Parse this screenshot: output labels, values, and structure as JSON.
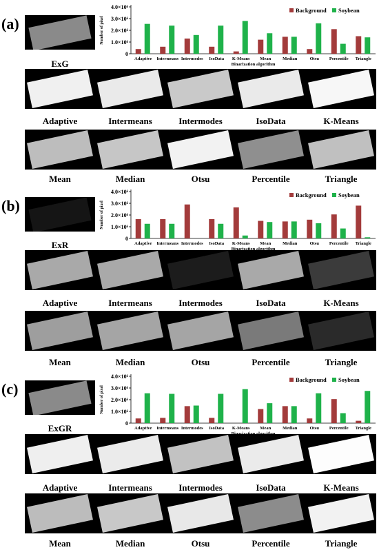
{
  "panels": [
    {
      "label": "(a)",
      "index_name": "ExG",
      "row1": [
        "Adaptive",
        "Intermeans",
        "Intermodes",
        "IsoData",
        "K-Means"
      ],
      "row2": [
        "Mean",
        "Median",
        "Otsu",
        "Percentile",
        "Triangle"
      ]
    },
    {
      "label": "(b)",
      "index_name": "ExR",
      "row1": [
        "Adaptive",
        "Intermeans",
        "Intermodes",
        "IsoData",
        "K-Means"
      ],
      "row2": [
        "Mean",
        "Median",
        "Otsu",
        "Percentile",
        "Triangle"
      ]
    },
    {
      "label": "(c)",
      "index_name": "ExGR",
      "row1": [
        "Adaptive",
        "Intermeans",
        "Intermodes",
        "IsoData",
        "K-Means"
      ],
      "row2": [
        "Mean",
        "Median",
        "Otsu",
        "Percentile",
        "Triangle"
      ]
    }
  ],
  "chart_data": [
    {
      "type": "bar",
      "ylabel": "Number of pixel",
      "xlabel": "Binarization algorithm",
      "ylim": [
        0,
        4000000.0
      ],
      "yticks": [
        "0",
        "1.0×10⁶",
        "2.0×10⁶",
        "3.0×10⁶",
        "4.0×10⁶"
      ],
      "legend_position": "top-right",
      "categories": [
        "Adaptive",
        "Intermeans",
        "Intermodes",
        "IsoData",
        "K-Means",
        "Mean",
        "Median",
        "Otsu",
        "Percentile",
        "Triangle"
      ],
      "series": [
        {
          "name": "Background",
          "color": "#a33b3b",
          "values": [
            400000.0,
            600000.0,
            1300000.0,
            600000.0,
            200000.0,
            1200000.0,
            1450000.0,
            400000.0,
            2100000.0,
            1500000.0
          ]
        },
        {
          "name": "Soybean",
          "color": "#1fb24a",
          "values": [
            2550000.0,
            2400000.0,
            1600000.0,
            2400000.0,
            2800000.0,
            1750000.0,
            1450000.0,
            2600000.0,
            850000.0,
            1400000.0
          ]
        }
      ]
    },
    {
      "type": "bar",
      "ylabel": "Number of pixel",
      "xlabel": "Binarization algorithm",
      "ylim": [
        0,
        4000000.0
      ],
      "yticks": [
        "0",
        "1.0×10⁶",
        "2.0×10⁶",
        "3.0×10⁶",
        "4.0×10⁶"
      ],
      "legend_position": "top-right",
      "categories": [
        "Adaptive",
        "Intermeans",
        "Intermodes",
        "IsoData",
        "K-Means",
        "Mean",
        "Median",
        "Otsu",
        "Percentile",
        "Triangle"
      ],
      "series": [
        {
          "name": "Background",
          "color": "#a33b3b",
          "values": [
            1650000.0,
            1650000.0,
            2900000.0,
            1650000.0,
            2650000.0,
            1500000.0,
            1450000.0,
            1600000.0,
            2050000.0,
            2800000.0
          ]
        },
        {
          "name": "Soybean",
          "color": "#1fb24a",
          "values": [
            1250000.0,
            1250000.0,
            0.0,
            1250000.0,
            250000.0,
            1400000.0,
            1450000.0,
            1300000.0,
            850000.0,
            100000.0
          ]
        }
      ]
    },
    {
      "type": "bar",
      "ylabel": "Number of pixel",
      "xlabel": "Binarization algorithm",
      "ylim": [
        0,
        4000000.0
      ],
      "yticks": [
        "0",
        "1.0×10⁶",
        "2.0×10⁶",
        "3.0×10⁶",
        "4.0×10⁶"
      ],
      "legend_position": "top-right",
      "categories": [
        "Adaptive",
        "Intermeans",
        "Intermodes",
        "IsoData",
        "K-Means",
        "Mean",
        "Median",
        "Otsu",
        "Percentile",
        "Triangle"
      ],
      "series": [
        {
          "name": "Background",
          "color": "#a33b3b",
          "values": [
            400000.0,
            450000.0,
            1450000.0,
            450000.0,
            0.0,
            1200000.0,
            1450000.0,
            400000.0,
            2050000.0,
            200000.0
          ]
        },
        {
          "name": "Soybean",
          "color": "#1fb24a",
          "values": [
            2550000.0,
            2500000.0,
            1500000.0,
            2500000.0,
            2900000.0,
            1700000.0,
            1450000.0,
            2550000.0,
            850000.0,
            2750000.0
          ]
        }
      ]
    }
  ]
}
